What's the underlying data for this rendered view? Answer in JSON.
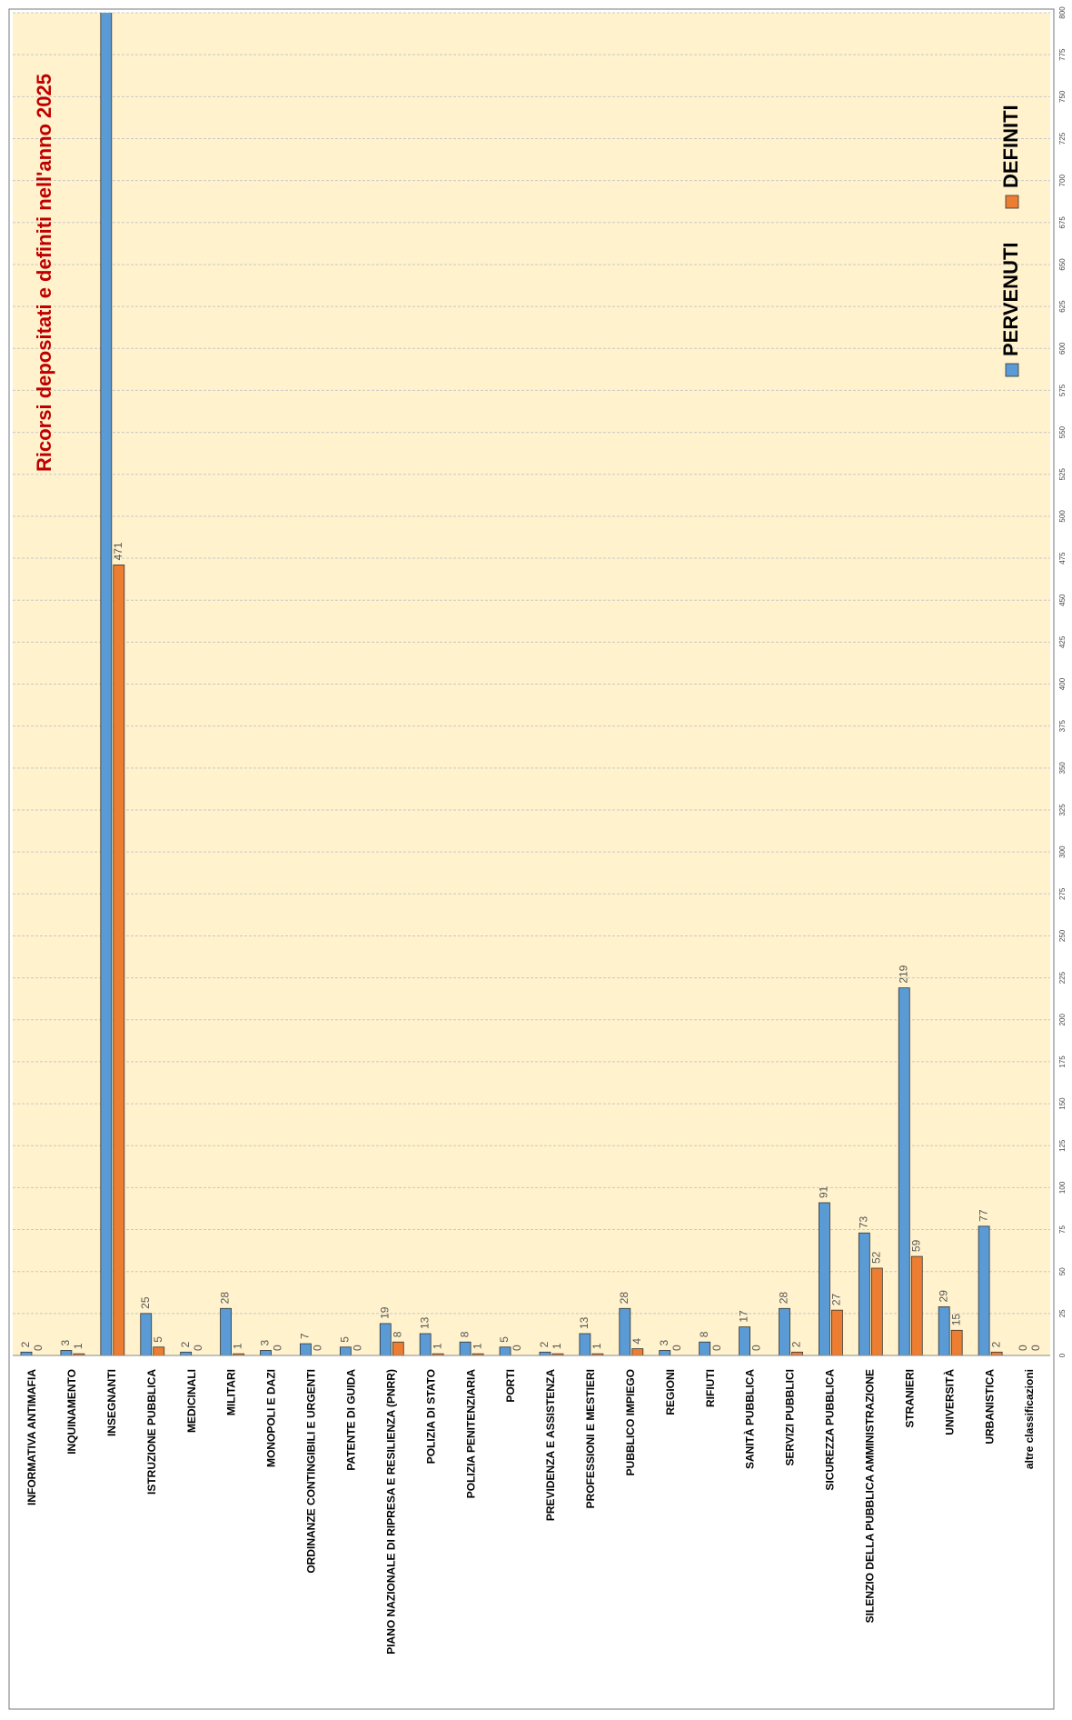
{
  "chart_data": {
    "type": "bar",
    "title": "Ricorsi depositati e definiti nell'anno 2025",
    "categories": [
      "INFORMATIVA ANTIMAFIA",
      "INQUINAMENTO",
      "INSEGNANTI",
      "ISTRUZIONE PUBBLICA",
      "MEDICINALI",
      "MILITARI",
      "MONOPOLI E DAZI",
      "ORDINANZE CONTINGIBILI E URGENTI",
      "PATENTE DI GUIDA",
      "PIANO NAZIONALE DI RIPRESA E RESILIENZA (PNRR)",
      "POLIZIA DI STATO",
      "POLIZIA PENITENZIARIA",
      "PORTI",
      "PREVIDENZA E ASSISTENZA",
      "PROFESSIONI E MESTIERI",
      "PUBBLICO IMPIEGO",
      "REGIONI",
      "RIFIUTI",
      "SANITÀ PUBBLICA",
      "SERVIZI PUBBLICI",
      "SICUREZZA PUBBLICA",
      "SILENZIO DELLA PUBBLICA AMMINISTRAZIONE",
      "STRANIERI",
      "UNIVERSITÀ",
      "URBANISTICA",
      "altre classificazioni"
    ],
    "series": [
      {
        "name": "PERVENUTI",
        "color": "#5b9bd5",
        "values": [
          2,
          3,
          820,
          25,
          2,
          28,
          3,
          7,
          5,
          19,
          13,
          8,
          5,
          2,
          13,
          28,
          3,
          8,
          17,
          28,
          91,
          73,
          219,
          29,
          77,
          0
        ]
      },
      {
        "name": "DEFINITI",
        "color": "#ed7d31",
        "values": [
          0,
          1,
          471,
          5,
          0,
          1,
          0,
          0,
          0,
          8,
          1,
          1,
          0,
          1,
          1,
          4,
          0,
          0,
          0,
          2,
          27,
          52,
          59,
          15,
          2,
          0
        ]
      }
    ],
    "ylim": [
      0,
      800
    ],
    "yticks": [
      0,
      25,
      50,
      75,
      100,
      125,
      150,
      175,
      200,
      225,
      250,
      275,
      300,
      325,
      350,
      375,
      400,
      425,
      450,
      475,
      500,
      525,
      550,
      575,
      600,
      625,
      650,
      675,
      700,
      725,
      750,
      775,
      800
    ],
    "grid": true
  }
}
